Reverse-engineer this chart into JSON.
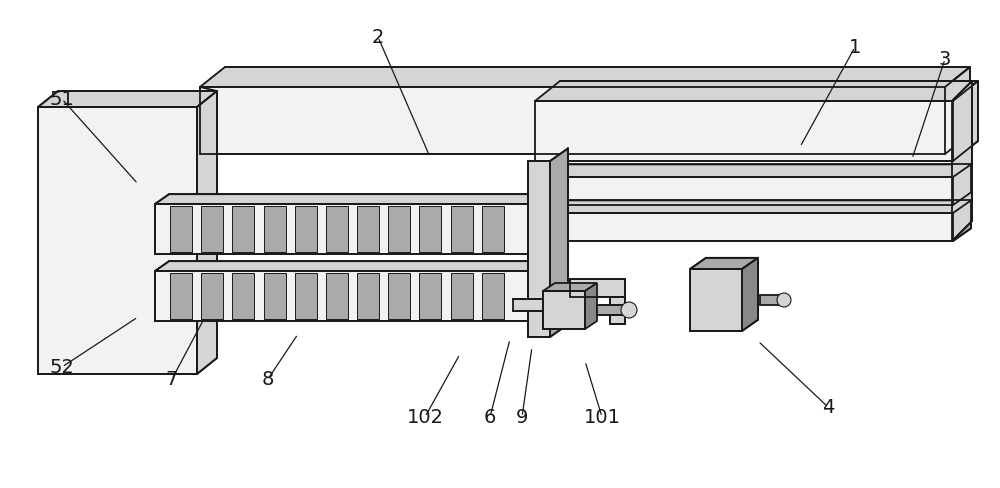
{
  "bg_color": "#ffffff",
  "lc": "#1a1a1a",
  "c_white": "#ffffff",
  "c_light": "#f2f2f2",
  "c_mid": "#d5d5d5",
  "c_dark": "#aaaaaa",
  "c_darker": "#888888",
  "lw": 1.3,
  "lw_thin": 0.8,
  "ann": [
    [
      "1",
      855,
      48,
      800,
      148
    ],
    [
      "2",
      378,
      38,
      430,
      158
    ],
    [
      "3",
      945,
      60,
      912,
      160
    ],
    [
      "4",
      828,
      408,
      758,
      342
    ],
    [
      "51",
      62,
      100,
      138,
      185
    ],
    [
      "52",
      62,
      368,
      138,
      318
    ],
    [
      "6",
      490,
      418,
      510,
      340
    ],
    [
      "7",
      172,
      380,
      205,
      318
    ],
    [
      "8",
      268,
      380,
      298,
      335
    ],
    [
      "9",
      522,
      418,
      532,
      348
    ],
    [
      "101",
      602,
      418,
      585,
      362
    ],
    [
      "102",
      425,
      418,
      460,
      355
    ]
  ]
}
